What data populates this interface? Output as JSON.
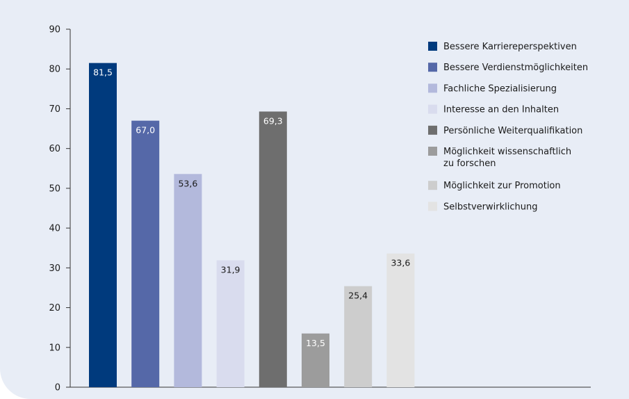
{
  "chart_data": {
    "type": "bar",
    "ylim": [
      0,
      90
    ],
    "yticks": [
      0,
      10,
      20,
      30,
      40,
      50,
      60,
      70,
      80,
      90
    ],
    "grid": false,
    "legend_position": "top-right",
    "series": [
      {
        "name": "Bessere Karriereperspektiven",
        "value": 81.5,
        "label": "81,5",
        "color": "#003a7d",
        "label_color": "#ffffff"
      },
      {
        "name": "Bessere Verdienstmöglichkeiten",
        "value": 67.0,
        "label": "67,0",
        "color": "#5568a8",
        "label_color": "#ffffff"
      },
      {
        "name": "Fachliche Spezialisierung",
        "value": 53.6,
        "label": "53,6",
        "color": "#b3b9dc",
        "label_color": "#1a1a1a"
      },
      {
        "name": "Interesse an den Inhalten",
        "value": 31.9,
        "label": "31,9",
        "color": "#d9dcee",
        "label_color": "#1a1a1a"
      },
      {
        "name": "Persönliche Weiterqualifikation",
        "value": 69.3,
        "label": "69,3",
        "color": "#6e6e6e",
        "label_color": "#ffffff"
      },
      {
        "name": "Möglichkeit wissenschaftlich zu forschen",
        "name_lines": [
          "Möglichkeit wissenschaftlich",
          "zu forschen"
        ],
        "value": 13.5,
        "label": "13,5",
        "color": "#9c9c9c",
        "label_color": "#ffffff"
      },
      {
        "name": "Möglichkeit zur Promotion",
        "value": 25.4,
        "label": "25,4",
        "color": "#cdcdcd",
        "label_color": "#1a1a1a"
      },
      {
        "name": "Selbstverwirklichung",
        "value": 33.6,
        "label": "33,6",
        "color": "#e3e3e3",
        "label_color": "#1a1a1a"
      }
    ]
  }
}
